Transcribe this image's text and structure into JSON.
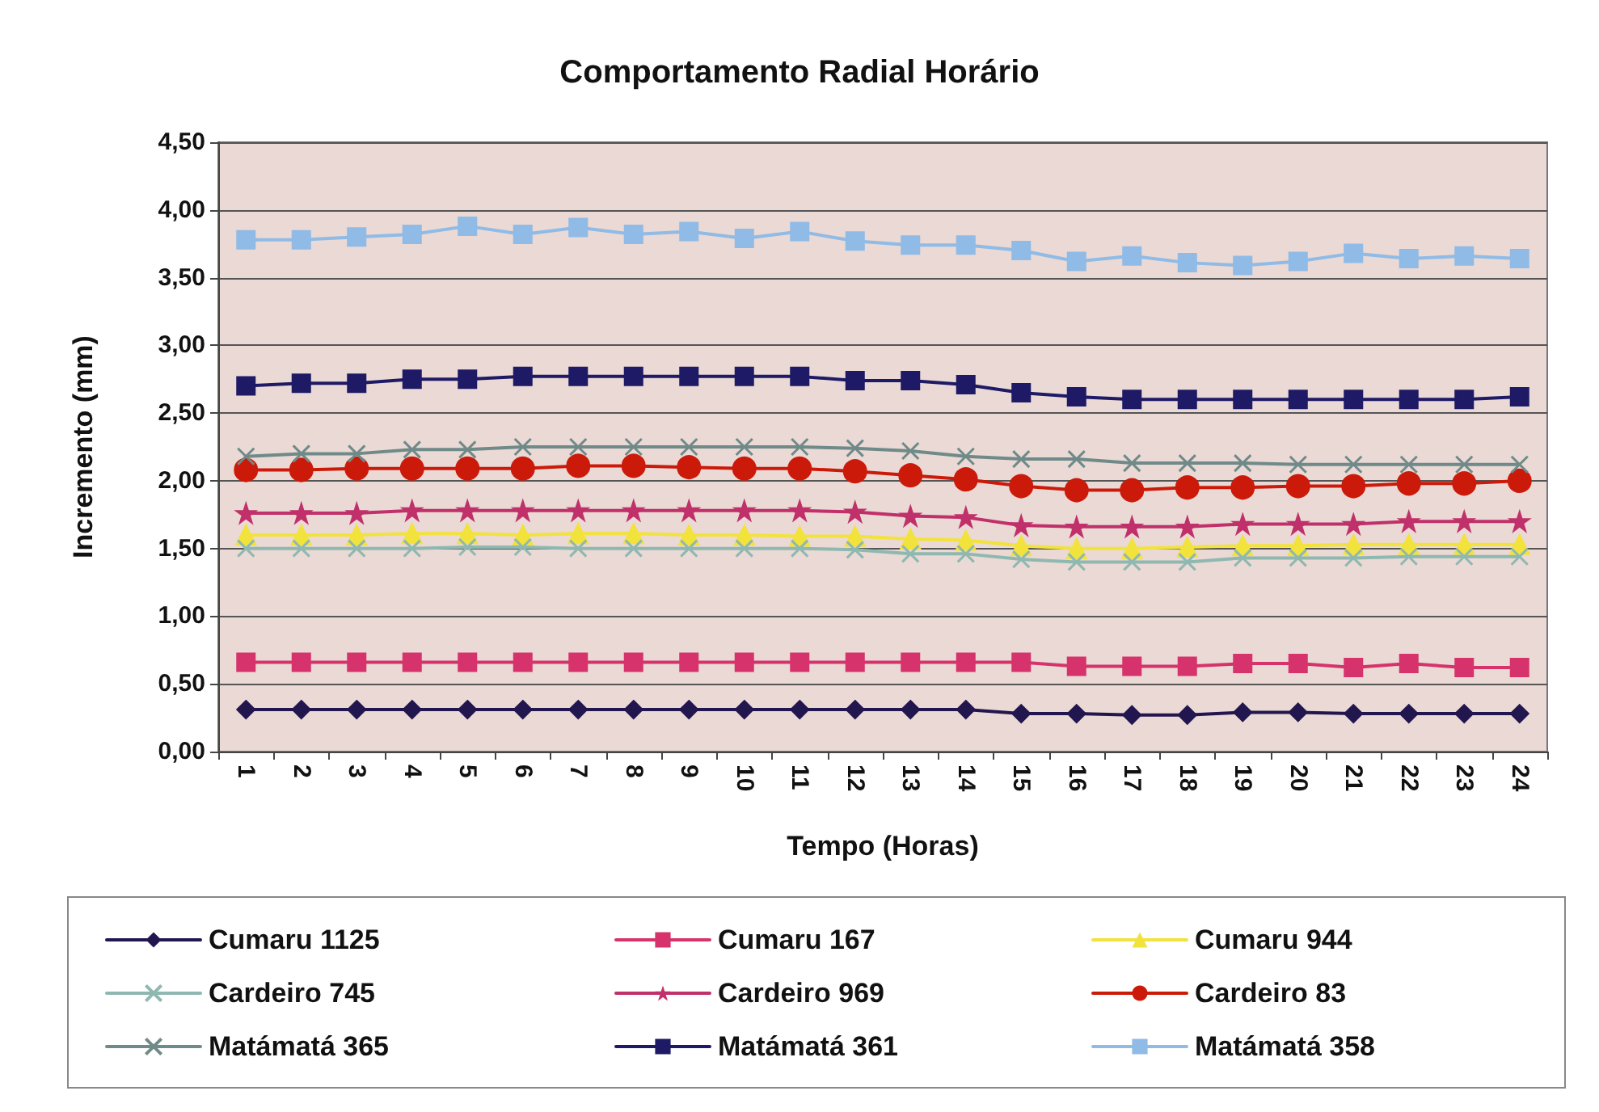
{
  "chart_data": {
    "type": "line",
    "title": "Comportamento Radial Horário",
    "xlabel": "Tempo (Horas)",
    "ylabel": "Incremento (mm)",
    "categories": [
      "1",
      "2",
      "3",
      "4",
      "5",
      "6",
      "7",
      "8",
      "9",
      "10",
      "11",
      "12",
      "13",
      "14",
      "15",
      "16",
      "17",
      "18",
      "19",
      "20",
      "21",
      "22",
      "23",
      "24"
    ],
    "ylim": [
      0,
      4.5
    ],
    "yticks": [
      {
        "value": 0,
        "label": "0,00"
      },
      {
        "value": 0.5,
        "label": "0,50"
      },
      {
        "value": 1,
        "label": "1,00"
      },
      {
        "value": 1.5,
        "label": "1,50"
      },
      {
        "value": 2,
        "label": "2,00"
      },
      {
        "value": 2.5,
        "label": "2,50"
      },
      {
        "value": 3,
        "label": "3,00"
      },
      {
        "value": 3.5,
        "label": "3,50"
      },
      {
        "value": 4,
        "label": "4,00"
      },
      {
        "value": 4.5,
        "label": "4,50"
      }
    ],
    "grid": "y",
    "legend": "bottom",
    "series": [
      {
        "name": "Cumaru 1125",
        "color": "#22164f",
        "marker": "diamond",
        "values": [
          0.31,
          0.31,
          0.31,
          0.31,
          0.31,
          0.31,
          0.31,
          0.31,
          0.31,
          0.31,
          0.31,
          0.31,
          0.31,
          0.31,
          0.28,
          0.28,
          0.27,
          0.27,
          0.29,
          0.29,
          0.28,
          0.28,
          0.28,
          0.28
        ]
      },
      {
        "name": "Cumaru 167",
        "color": "#d6336c",
        "marker": "square",
        "values": [
          0.66,
          0.66,
          0.66,
          0.66,
          0.66,
          0.66,
          0.66,
          0.66,
          0.66,
          0.66,
          0.66,
          0.66,
          0.66,
          0.66,
          0.66,
          0.63,
          0.63,
          0.63,
          0.65,
          0.65,
          0.62,
          0.65,
          0.62,
          0.62
        ]
      },
      {
        "name": "Cumaru 944",
        "color": "#f2e23c",
        "marker": "triangle",
        "values": [
          1.6,
          1.6,
          1.6,
          1.61,
          1.61,
          1.6,
          1.61,
          1.61,
          1.6,
          1.6,
          1.59,
          1.59,
          1.57,
          1.56,
          1.52,
          1.5,
          1.5,
          1.51,
          1.52,
          1.52,
          1.53,
          1.53,
          1.53,
          1.53
        ]
      },
      {
        "name": "Cardeiro 745",
        "color": "#8fb8b0",
        "marker": "cross",
        "values": [
          1.5,
          1.5,
          1.5,
          1.5,
          1.51,
          1.51,
          1.5,
          1.5,
          1.5,
          1.5,
          1.5,
          1.49,
          1.46,
          1.46,
          1.42,
          1.4,
          1.4,
          1.4,
          1.43,
          1.43,
          1.43,
          1.44,
          1.44,
          1.44
        ]
      },
      {
        "name": "Cardeiro 969",
        "color": "#c0306a",
        "marker": "star",
        "values": [
          1.76,
          1.76,
          1.76,
          1.78,
          1.78,
          1.78,
          1.78,
          1.78,
          1.78,
          1.78,
          1.78,
          1.77,
          1.74,
          1.73,
          1.67,
          1.66,
          1.66,
          1.66,
          1.68,
          1.68,
          1.68,
          1.7,
          1.7,
          1.7
        ]
      },
      {
        "name": "Cardeiro 83",
        "color": "#cc1a0a",
        "marker": "circle",
        "values": [
          2.08,
          2.08,
          2.09,
          2.09,
          2.09,
          2.09,
          2.11,
          2.11,
          2.1,
          2.09,
          2.09,
          2.07,
          2.04,
          2.01,
          1.96,
          1.93,
          1.93,
          1.95,
          1.95,
          1.96,
          1.96,
          1.98,
          1.98,
          2.0
        ]
      },
      {
        "name": "Matámatá 365",
        "color": "#6f8a88",
        "marker": "cross",
        "values": [
          2.18,
          2.2,
          2.2,
          2.23,
          2.23,
          2.25,
          2.25,
          2.25,
          2.25,
          2.25,
          2.25,
          2.24,
          2.22,
          2.18,
          2.16,
          2.16,
          2.13,
          2.13,
          2.13,
          2.12,
          2.12,
          2.12,
          2.12,
          2.12
        ]
      },
      {
        "name": "Matámatá 361",
        "color": "#1e1a66",
        "marker": "square",
        "values": [
          2.7,
          2.72,
          2.72,
          2.75,
          2.75,
          2.77,
          2.77,
          2.77,
          2.77,
          2.77,
          2.77,
          2.74,
          2.74,
          2.71,
          2.65,
          2.62,
          2.6,
          2.6,
          2.6,
          2.6,
          2.6,
          2.6,
          2.6,
          2.62
        ]
      },
      {
        "name": "Matámatá 358",
        "color": "#8fbbe6",
        "marker": "square",
        "values": [
          3.78,
          3.78,
          3.8,
          3.82,
          3.88,
          3.82,
          3.87,
          3.82,
          3.84,
          3.79,
          3.84,
          3.77,
          3.74,
          3.74,
          3.7,
          3.62,
          3.66,
          3.61,
          3.59,
          3.62,
          3.68,
          3.64,
          3.66,
          3.64
        ]
      }
    ]
  }
}
